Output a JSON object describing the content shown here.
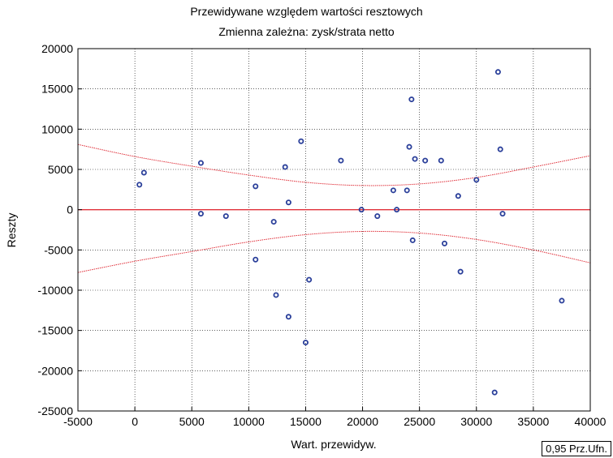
{
  "chart_data": {
    "type": "scatter",
    "title": "Przewidywane względem wartości resztowych",
    "subtitle": "Zmienna zależna:    zysk/strata netto",
    "xlabel": "Wart. przewidyw.",
    "ylabel": "Reszty",
    "xlim": [
      -5000,
      40000
    ],
    "ylim": [
      -25000,
      20000
    ],
    "xticks": [
      -5000,
      0,
      5000,
      10000,
      15000,
      20000,
      25000,
      30000,
      35000,
      40000
    ],
    "yticks": [
      20000,
      15000,
      10000,
      5000,
      0,
      -5000,
      -10000,
      -15000,
      -20000,
      -25000
    ],
    "grid": true,
    "confidence_label": "0,95 Prz.Ufn.",
    "colors": {
      "points": "#2a3f9a",
      "fit_line": "#e0303a",
      "band": "#e0303a"
    },
    "points": [
      {
        "x": 400,
        "y": 3100
      },
      {
        "x": 800,
        "y": 4600
      },
      {
        "x": 5800,
        "y": 5800
      },
      {
        "x": 5800,
        "y": -500
      },
      {
        "x": 8000,
        "y": -800
      },
      {
        "x": 10600,
        "y": 2900
      },
      {
        "x": 10600,
        "y": -6200
      },
      {
        "x": 12200,
        "y": -1500
      },
      {
        "x": 12400,
        "y": -10600
      },
      {
        "x": 13200,
        "y": 5300
      },
      {
        "x": 13500,
        "y": 900
      },
      {
        "x": 13500,
        "y": -13300
      },
      {
        "x": 14600,
        "y": 8500
      },
      {
        "x": 15000,
        "y": -16500
      },
      {
        "x": 15300,
        "y": -8700
      },
      {
        "x": 18100,
        "y": 6100
      },
      {
        "x": 19900,
        "y": 0
      },
      {
        "x": 21300,
        "y": -800
      },
      {
        "x": 22700,
        "y": 2400
      },
      {
        "x": 23000,
        "y": 0
      },
      {
        "x": 23900,
        "y": 2400
      },
      {
        "x": 24100,
        "y": 7800
      },
      {
        "x": 24300,
        "y": 13700
      },
      {
        "x": 24400,
        "y": -3800
      },
      {
        "x": 24600,
        "y": 6300
      },
      {
        "x": 25500,
        "y": 6100
      },
      {
        "x": 26900,
        "y": 6100
      },
      {
        "x": 27200,
        "y": -4200
      },
      {
        "x": 28400,
        "y": 1700
      },
      {
        "x": 28600,
        "y": -7700
      },
      {
        "x": 30000,
        "y": 3700
      },
      {
        "x": 31600,
        "y": -22700
      },
      {
        "x": 31900,
        "y": 17100
      },
      {
        "x": 32100,
        "y": 7500
      },
      {
        "x": 32300,
        "y": -500
      },
      {
        "x": 37500,
        "y": -11300
      }
    ],
    "fit_line": [
      {
        "x": -5000,
        "y": 0
      },
      {
        "x": 40000,
        "y": 0
      }
    ],
    "upper_band": [
      {
        "x": -5000,
        "y": 8100
      },
      {
        "x": 0,
        "y": 6600
      },
      {
        "x": 5000,
        "y": 5400
      },
      {
        "x": 10000,
        "y": 4300
      },
      {
        "x": 15000,
        "y": 3400
      },
      {
        "x": 20000,
        "y": 3000
      },
      {
        "x": 25000,
        "y": 3200
      },
      {
        "x": 30000,
        "y": 4000
      },
      {
        "x": 35000,
        "y": 5300
      },
      {
        "x": 40000,
        "y": 6700
      }
    ],
    "lower_band": [
      {
        "x": -5000,
        "y": -7800
      },
      {
        "x": 0,
        "y": -6400
      },
      {
        "x": 5000,
        "y": -5200
      },
      {
        "x": 10000,
        "y": -4000
      },
      {
        "x": 15000,
        "y": -3100
      },
      {
        "x": 20000,
        "y": -2700
      },
      {
        "x": 25000,
        "y": -2900
      },
      {
        "x": 30000,
        "y": -3700
      },
      {
        "x": 35000,
        "y": -5000
      },
      {
        "x": 40000,
        "y": -6600
      }
    ]
  }
}
